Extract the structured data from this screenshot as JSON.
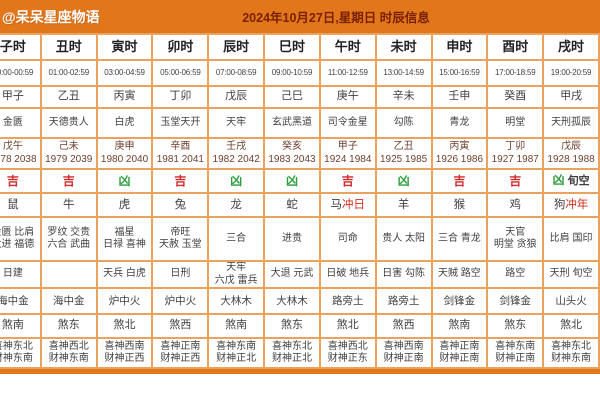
{
  "header": {
    "brand": "@呆呆星座物语",
    "title": "2024年10月27日,星期日 时辰信息"
  },
  "colors": {
    "bar_bg": "#e2761b",
    "grid_border": "#eba25e",
    "auspicious_red": "#d02a2a",
    "inauspicious_green": "#2f9e3f",
    "clash_red": "#d03020",
    "title_maroon": "#7a2000"
  },
  "columns": [
    {
      "hour": "子时",
      "time": "00:00-00:59",
      "ganzhi": "甲子",
      "star": "金匮",
      "ming_gz": "戊午",
      "ming_years": "1978 2038",
      "luck": "吉",
      "luck_extra": "",
      "animal": "鼠",
      "animal_extra": "",
      "jishen": [
        "金匮 比肩",
        "大进 福德"
      ],
      "xiongshen": [
        "日建"
      ],
      "nayin": "海中金",
      "sha": "煞南",
      "xishen": "喜神东北",
      "caishen": "财神东南"
    },
    {
      "hour": "丑时",
      "time": "01:00-02:59",
      "ganzhi": "乙丑",
      "star": "天德贵人",
      "ming_gz": "己未",
      "ming_years": "1979 2039",
      "luck": "吉",
      "luck_extra": "",
      "animal": "牛",
      "animal_extra": "",
      "jishen": [
        "罗纹 交贵",
        "六合 武曲"
      ],
      "xiongshen": [],
      "nayin": "海中金",
      "sha": "煞东",
      "xishen": "喜神西北",
      "caishen": "财神东南"
    },
    {
      "hour": "寅时",
      "time": "03:00-04:59",
      "ganzhi": "丙寅",
      "star": "白虎",
      "ming_gz": "庚申",
      "ming_years": "1980 2040",
      "luck": "凶",
      "luck_extra": "",
      "animal": "虎",
      "animal_extra": "",
      "jishen": [
        "福星",
        "日禄 喜神"
      ],
      "xiongshen": [
        "天兵 白虎"
      ],
      "nayin": "炉中火",
      "sha": "煞北",
      "xishen": "喜神西南",
      "caishen": "财神正西"
    },
    {
      "hour": "卯时",
      "time": "05:00-06:59",
      "ganzhi": "丁卯",
      "star": "玉堂天开",
      "ming_gz": "辛酉",
      "ming_years": "1981 2041",
      "luck": "吉",
      "luck_extra": "",
      "animal": "兔",
      "animal_extra": "",
      "jishen": [
        "帝旺",
        "天赦 玉堂"
      ],
      "xiongshen": [
        "日刑"
      ],
      "nayin": "炉中火",
      "sha": "煞西",
      "xishen": "喜神正南",
      "caishen": "财神正西"
    },
    {
      "hour": "辰时",
      "time": "07:00-08:59",
      "ganzhi": "戊辰",
      "star": "天牢",
      "ming_gz": "壬戌",
      "ming_years": "1982 2042",
      "luck": "凶",
      "luck_extra": "",
      "animal": "龙",
      "animal_extra": "",
      "jishen": [
        "三合"
      ],
      "xiongshen": [
        "天牢",
        "六戊 雷兵"
      ],
      "nayin": "大林木",
      "sha": "煞南",
      "xishen": "喜神东南",
      "caishen": "财神正北"
    },
    {
      "hour": "巳时",
      "time": "09:00-10:59",
      "ganzhi": "己巳",
      "star": "玄武黑道",
      "ming_gz": "癸亥",
      "ming_years": "1983 2043",
      "luck": "凶",
      "luck_extra": "",
      "animal": "蛇",
      "animal_extra": "",
      "jishen": [
        "进贵"
      ],
      "xiongshen": [
        "大退 元武"
      ],
      "nayin": "大林木",
      "sha": "煞东",
      "xishen": "喜神东北",
      "caishen": "财神正北"
    },
    {
      "hour": "午时",
      "time": "11:00-12:59",
      "ganzhi": "庚午",
      "star": "司令金星",
      "ming_gz": "甲子",
      "ming_years": "1924 1984",
      "luck": "吉",
      "luck_extra": "",
      "animal": "马",
      "animal_extra": "冲日",
      "jishen": [
        "司命"
      ],
      "xiongshen": [
        "日破 地兵"
      ],
      "nayin": "路旁土",
      "sha": "煞北",
      "xishen": "喜神西北",
      "caishen": "财神正东"
    },
    {
      "hour": "未时",
      "time": "13:00-14:59",
      "ganzhi": "辛未",
      "star": "勾陈",
      "ming_gz": "乙丑",
      "ming_years": "1925 1985",
      "luck": "凶",
      "luck_extra": "",
      "animal": "羊",
      "animal_extra": "",
      "jishen": [
        "贵人 太阳"
      ],
      "xiongshen": [
        "日害 勾陈"
      ],
      "nayin": "路旁土",
      "sha": "煞西",
      "xishen": "喜神西南",
      "caishen": "财神正南"
    },
    {
      "hour": "申时",
      "time": "15:00-16:59",
      "ganzhi": "壬申",
      "star": "青龙",
      "ming_gz": "丙寅",
      "ming_years": "1926 1986",
      "luck": "吉",
      "luck_extra": "",
      "animal": "猴",
      "animal_extra": "",
      "jishen": [
        "三合 青龙"
      ],
      "xiongshen": [
        "天贼 路空"
      ],
      "nayin": "剑锋金",
      "sha": "煞南",
      "xishen": "喜神正南",
      "caishen": "财神正南"
    },
    {
      "hour": "酉时",
      "time": "17:00-18:59",
      "ganzhi": "癸酉",
      "star": "明堂",
      "ming_gz": "丁卯",
      "ming_years": "1927 1987",
      "luck": "吉",
      "luck_extra": "",
      "animal": "鸡",
      "animal_extra": "",
      "jishen": [
        "天官",
        "明堂 贪狼"
      ],
      "xiongshen": [
        "路空"
      ],
      "nayin": "剑锋金",
      "sha": "煞东",
      "xishen": "喜神东南",
      "caishen": "财神正南"
    },
    {
      "hour": "戌时",
      "time": "19:00-20:59",
      "ganzhi": "甲戌",
      "star": "天刑孤辰",
      "ming_gz": "戊辰",
      "ming_years": "1928 1988",
      "luck": "凶",
      "luck_extra": "旬空",
      "animal": "狗",
      "animal_extra": "冲年",
      "jishen": [
        "比肩 国印"
      ],
      "xiongshen": [
        "天刑 旬空"
      ],
      "nayin": "山头火",
      "sha": "煞北",
      "xishen": "喜神东北",
      "caishen": "财神东南"
    }
  ]
}
